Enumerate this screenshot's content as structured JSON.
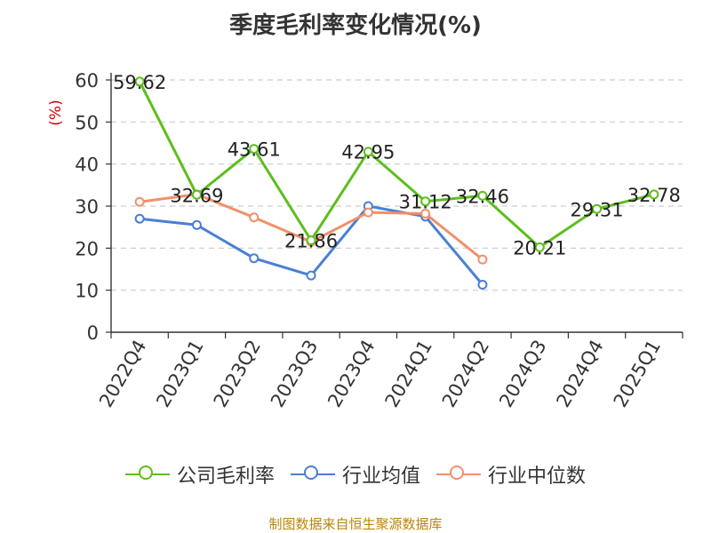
{
  "colors": {
    "series": [
      "#5cbf1c",
      "#4a7fd6",
      "#f0906a"
    ],
    "ylabel": "#cc0000",
    "grid": "#cccccc",
    "axis": "#333333",
    "footer": "#b8860b"
  },
  "footer": "制图数据来自恒生聚源数据库",
  "chart_data": {
    "type": "line",
    "title": "季度毛利率变化情况(%)",
    "ylabel": "(%)",
    "xlabel": "",
    "categories": [
      "2022Q4",
      "2023Q1",
      "2023Q2",
      "2023Q3",
      "2023Q4",
      "2024Q1",
      "2024Q2",
      "2024Q3",
      "2024Q4",
      "2025Q1"
    ],
    "ylim": [
      0,
      60
    ],
    "yticks": [
      0,
      10,
      20,
      30,
      40,
      50,
      60
    ],
    "grid": true,
    "legend_position": "bottom",
    "series": [
      {
        "name": "公司毛利率",
        "values": [
          59.62,
          32.69,
          43.61,
          21.86,
          42.95,
          31.12,
          32.46,
          20.21,
          29.31,
          32.78
        ],
        "show_labels": true
      },
      {
        "name": "行业均值",
        "values": [
          27.0,
          25.5,
          17.6,
          13.5,
          30.0,
          27.5,
          11.3,
          null,
          null,
          null
        ],
        "show_labels": false
      },
      {
        "name": "行业中位数",
        "values": [
          31.0,
          32.8,
          27.3,
          21.5,
          28.5,
          28.2,
          17.3,
          null,
          null,
          null
        ],
        "show_labels": false
      }
    ]
  }
}
